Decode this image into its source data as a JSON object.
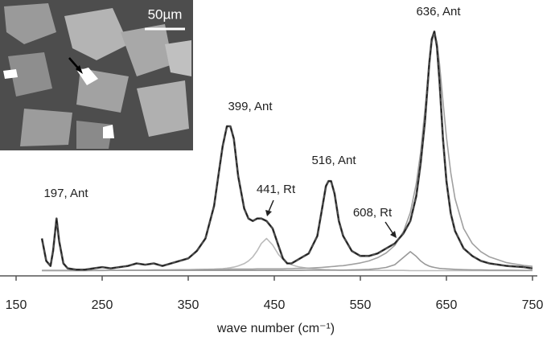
{
  "chart_data": {
    "type": "line",
    "x_label": "wave number (cm⁻¹)",
    "xlim": [
      150,
      750
    ],
    "xticks": [
      150,
      250,
      350,
      450,
      550,
      650,
      750
    ],
    "ylim": [
      0,
      100
    ],
    "inset_scale_label": "50µm",
    "annotations": [
      "197, Ant",
      "399, Ant",
      "441, Rt",
      "516, Ant",
      "608, Rt",
      "636, Ant"
    ],
    "x": [
      180,
      185,
      190,
      193,
      197,
      200,
      205,
      210,
      220,
      230,
      240,
      250,
      260,
      270,
      280,
      290,
      300,
      310,
      320,
      330,
      340,
      350,
      360,
      370,
      380,
      385,
      390,
      395,
      399,
      403,
      408,
      415,
      420,
      425,
      430,
      435,
      441,
      448,
      455,
      460,
      465,
      470,
      475,
      480,
      490,
      500,
      505,
      510,
      513,
      516,
      520,
      525,
      530,
      540,
      550,
      560,
      570,
      580,
      590,
      600,
      608,
      615,
      620,
      625,
      630,
      633,
      636,
      639,
      642,
      646,
      650,
      655,
      660,
      670,
      680,
      690,
      700,
      720,
      740,
      750
    ],
    "series": [
      {
        "color": "#bbbbbb",
        "values": [
          2.1,
          2.1,
          2.1,
          2.1,
          2.1,
          2.1,
          2.1,
          2.1,
          2.1,
          2.1,
          2.1,
          2.1,
          2.2,
          2.2,
          2.2,
          2.2,
          2.2,
          2.3,
          2.3,
          2.4,
          2.4,
          2.5,
          2.6,
          2.6,
          2.7,
          2.8,
          2.9,
          3.1,
          3.3,
          3.5,
          4,
          4.9,
          6,
          7.6,
          10,
          13,
          15,
          12.4,
          8.5,
          6.6,
          5.3,
          4.5,
          3.9,
          3.5,
          3,
          2.7,
          2.6,
          2.5,
          2.5,
          2.4,
          2.4,
          2.3,
          2.3,
          2.2,
          2.2,
          2.2,
          2.2,
          2.2,
          2.2,
          2.2,
          2.1,
          2.1,
          2.1,
          2.1,
          2.1,
          2.1,
          2.1,
          2.1,
          2.1,
          2.1,
          2.1,
          2.1,
          2.1,
          2.1,
          2.1,
          2.1,
          2.1,
          2.1,
          2.1,
          2.1
        ]
      },
      {
        "color": "#999999",
        "values": [
          2.2,
          2.2,
          2.2,
          2.2,
          2.2,
          2.2,
          2.2,
          2.2,
          2.2,
          2.2,
          2.2,
          2.2,
          2.2,
          2.2,
          2.2,
          2.2,
          2.2,
          2.2,
          2.2,
          2.2,
          2.2,
          2.2,
          2.2,
          2.2,
          2.2,
          2.2,
          2.2,
          2.2,
          2.2,
          2.2,
          2.2,
          2.2,
          2.2,
          2.2,
          2.2,
          2.2,
          2.2,
          2.2,
          2.2,
          2.2,
          2.2,
          2.2,
          2.2,
          2.2,
          2.3,
          2.3,
          2.3,
          2.3,
          2.3,
          2.3,
          2.3,
          2.3,
          2.3,
          2.4,
          2.5,
          2.6,
          2.9,
          3.4,
          4.5,
          7.4,
          9.7,
          7.8,
          6,
          4.7,
          3.9,
          3.6,
          3.4,
          3.2,
          3,
          2.9,
          2.8,
          2.7,
          2.6,
          2.5,
          2.4,
          2.4,
          2.3,
          2.3,
          2.2,
          2.2
        ]
      },
      {
        "color": "#a0a0a0",
        "values": [
          2.1,
          2.1,
          2.1,
          2.1,
          2.1,
          2.1,
          2.1,
          2.1,
          2.1,
          2.1,
          2.2,
          2.2,
          2.2,
          2.2,
          2.3,
          2.3,
          2.3,
          2.4,
          2.4,
          2.4,
          2.5,
          2.5,
          2.5,
          2.6,
          2.6,
          2.6,
          2.6,
          2.6,
          2.7,
          2.7,
          2.7,
          2.7,
          2.7,
          2.7,
          2.8,
          2.8,
          2.8,
          2.8,
          2.8,
          2.8,
          2.9,
          2.9,
          3,
          3,
          3.1,
          3.3,
          3.4,
          3.5,
          3.6,
          3.7,
          3.8,
          4,
          4.1,
          4.6,
          5.2,
          6,
          7.3,
          9.2,
          12.2,
          17.7,
          25.4,
          37,
          49.5,
          66.6,
          85,
          93.8,
          97,
          93.8,
          85,
          70,
          55.7,
          41.4,
          31,
          19,
          13,
          9.7,
          7.6,
          5.3,
          4.2,
          3.8
        ]
      },
      {
        "color": "#4a4a4a",
        "values": [
          15,
          6,
          4,
          10,
          23,
          14,
          5,
          3,
          2.5,
          2.5,
          3,
          3.5,
          3,
          3.5,
          4,
          5,
          4.5,
          5,
          4,
          5,
          6,
          7,
          10,
          15,
          28,
          40,
          52,
          60,
          60,
          55,
          40,
          27,
          23,
          22,
          23,
          23,
          22,
          19,
          12,
          7,
          5,
          5,
          6,
          7,
          9,
          16,
          26,
          36,
          38,
          38,
          33,
          22,
          16,
          10,
          8,
          8,
          9,
          11,
          13,
          17,
          22,
          32,
          45,
          62,
          85,
          95,
          98,
          92,
          78,
          55,
          38,
          25,
          18,
          11,
          8,
          6,
          5,
          4,
          3.5,
          3
        ]
      }
    ]
  }
}
